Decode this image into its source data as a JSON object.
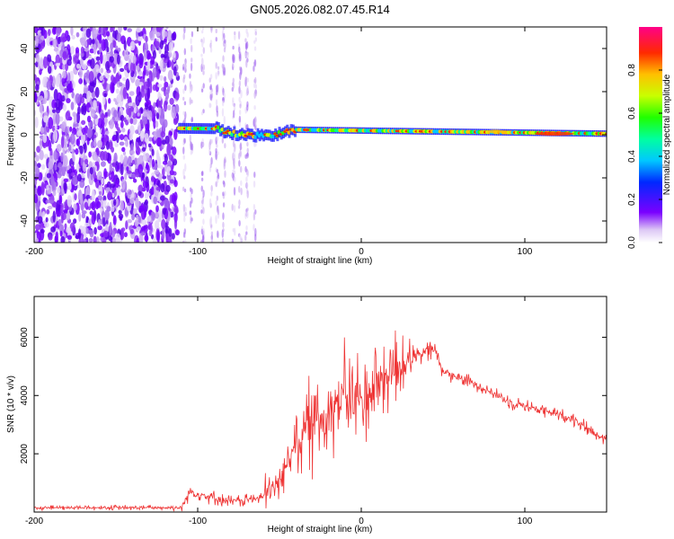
{
  "title": "GN05.2026.082.07.45.R14",
  "chart_data": [
    {
      "type": "heatmap",
      "xlabel": "Height of straight line (km)",
      "ylabel": "Frequency (Hz)",
      "xlim": [
        -200,
        150
      ],
      "ylim": [
        -50,
        50
      ],
      "xticks": [
        -200,
        -100,
        0,
        100
      ],
      "yticks": [
        -40,
        -20,
        0,
        20,
        40
      ],
      "colorbar": {
        "label": "Normalized spectral amplitude",
        "range": [
          0,
          1
        ],
        "ticks": [
          "0.0",
          "0.2",
          "0.4",
          "0.6",
          "0.8"
        ]
      },
      "regions": {
        "noise_x": [
          -200,
          -112
        ],
        "sparse_x": [
          -112,
          -60
        ],
        "signal_start_x": -112,
        "signal_freq_hz_start": 3,
        "signal_freq_hz_end": 0.5
      }
    },
    {
      "type": "line",
      "xlabel": "Height of straight line (km)",
      "ylabel": "SNR (10 * v/v)",
      "xlim": [
        -200,
        150
      ],
      "ylim": [
        0,
        7400
      ],
      "xticks": [
        -200,
        -100,
        0,
        100
      ],
      "yticks": [
        2000,
        4000,
        6000
      ],
      "color": "#ee3333",
      "profile": {
        "x": [
          -200,
          -110,
          -105,
          -80,
          -60,
          -50,
          -40,
          -20,
          -10,
          0,
          10,
          20,
          30,
          40,
          45,
          50,
          70,
          90,
          110,
          130,
          140,
          150
        ],
        "y": [
          150,
          150,
          700,
          350,
          500,
          1000,
          2500,
          3500,
          4000,
          3800,
          4500,
          4900,
          5200,
          5500,
          5600,
          4800,
          4400,
          3800,
          3500,
          3200,
          2800,
          2500
        ]
      }
    }
  ]
}
